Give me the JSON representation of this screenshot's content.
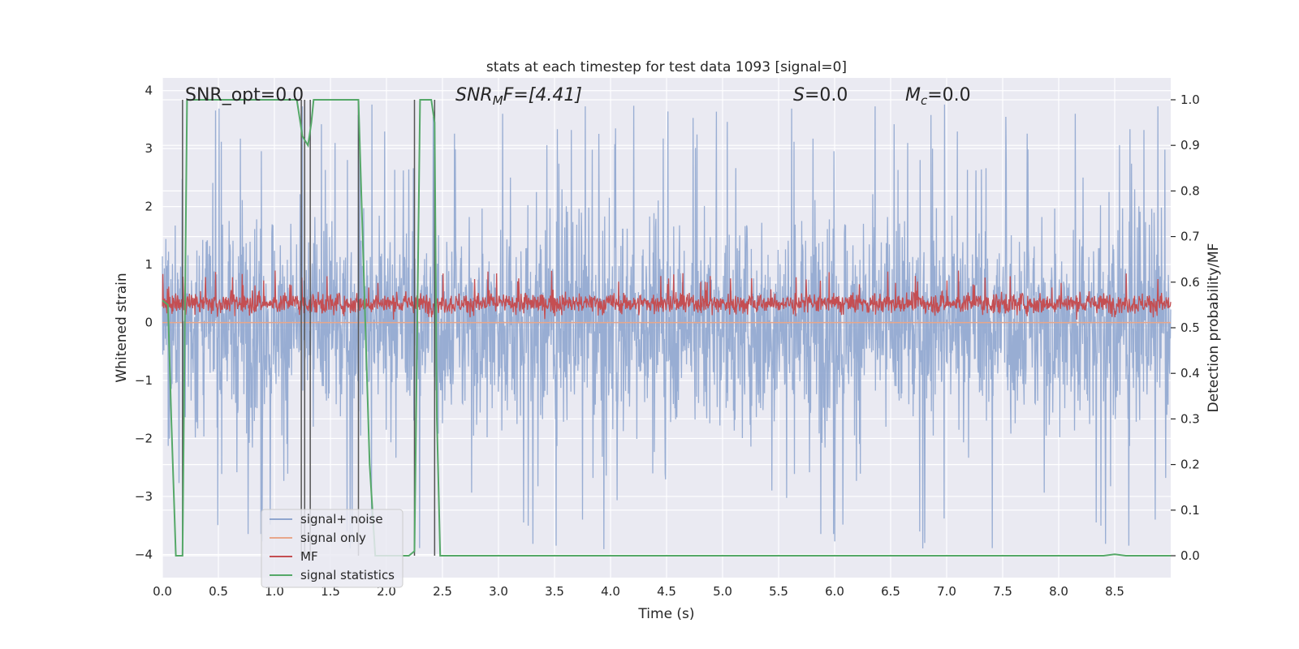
{
  "chart_data": {
    "type": "line",
    "title": "stats at each timestep for test data 1093 [signal=0]",
    "xlabel": "Time (s)",
    "ylabel": "Whitened strain",
    "ylabel_right": "Detection probability/MF",
    "xlim": [
      0.0,
      9.0
    ],
    "ylim": [
      -4.4,
      4.22
    ],
    "ylim_right": [
      -0.048,
      1.048
    ],
    "x_ticks": [
      "0.0",
      "0.5",
      "1.0",
      "1.5",
      "2.0",
      "2.5",
      "3.0",
      "3.5",
      "4.0",
      "4.5",
      "5.0",
      "5.5",
      "6.0",
      "6.5",
      "7.0",
      "7.5",
      "8.0",
      "8.5"
    ],
    "y_ticks": [
      "4",
      "3",
      "2",
      "1",
      "0",
      "−1",
      "−2",
      "−3",
      "−4"
    ],
    "y_ticks_right": [
      "1.0",
      "0.9",
      "0.8",
      "0.7",
      "0.6",
      "0.5",
      "0.4",
      "0.3",
      "0.2",
      "0.1",
      "0.0"
    ],
    "annotations": [
      {
        "text": "SNR_opt=0.0"
      },
      {
        "text": "SNR_MF=[4.41]",
        "main": "SNR",
        "sub": "M",
        "rest": "F=[4.41]"
      },
      {
        "text": "S=0.0",
        "main": "S",
        "rest": "=0.0"
      },
      {
        "text": "M_c=0.0",
        "main": "M",
        "sub": "c",
        "rest": "=0.0"
      }
    ],
    "grid": true,
    "legend_position": "lower-left",
    "series": [
      {
        "name": "signal+ noise",
        "color": "#8fa6cf",
        "kind": "noise",
        "axis": "left",
        "envelope": [
          -1.6,
          1.6
        ],
        "peak_range": [
          -4.0,
          3.8
        ]
      },
      {
        "name": "signal only",
        "color": "#e8a68a",
        "kind": "flat",
        "axis": "left",
        "values": [
          0,
          0
        ]
      },
      {
        "name": "MF",
        "color": "#c44e52",
        "kind": "noise",
        "axis": "left",
        "range": [
          0.05,
          0.95
        ]
      },
      {
        "name": "signal statistics",
        "color": "#55a868",
        "kind": "line",
        "axis": "right",
        "x": [
          0.0,
          0.05,
          0.08,
          0.12,
          0.15,
          0.18,
          0.2,
          0.22,
          0.25,
          0.3,
          0.5,
          0.8,
          1.0,
          1.1,
          1.15,
          1.2,
          1.25,
          1.3,
          1.33,
          1.35,
          1.4,
          1.5,
          1.6,
          1.7,
          1.75,
          1.8,
          1.85,
          1.9,
          2.0,
          2.1,
          2.15,
          2.2,
          2.25,
          2.28,
          2.3,
          2.32,
          2.35,
          2.4,
          2.43,
          2.45,
          2.48,
          2.5,
          3.0,
          4.0,
          5.0,
          6.0,
          7.0,
          8.0,
          8.4,
          8.5,
          8.6,
          9.0
        ],
        "y": [
          0.56,
          0.55,
          0.3,
          0.0,
          0.0,
          0.0,
          0.5,
          1.0,
          1.0,
          1.0,
          1.0,
          1.0,
          1.0,
          1.0,
          1.0,
          1.0,
          0.92,
          0.9,
          0.95,
          1.0,
          1.0,
          1.0,
          1.0,
          1.0,
          1.0,
          0.6,
          0.2,
          0.0,
          0.0,
          0.0,
          0.0,
          0.0,
          0.01,
          0.6,
          1.0,
          1.0,
          1.0,
          1.0,
          0.95,
          0.3,
          0.0,
          0.0,
          0.0,
          0.0,
          0.0,
          0.0,
          0.0,
          0.0,
          0.0,
          0.003,
          0.0,
          0.0
        ]
      }
    ],
    "vlines": [
      0.18,
      1.24,
      1.27,
      1.32,
      1.75,
      2.25,
      2.43
    ],
    "vline_color": "#555555",
    "background_color": "#eaeaf2",
    "grid_color": "#ffffff"
  }
}
